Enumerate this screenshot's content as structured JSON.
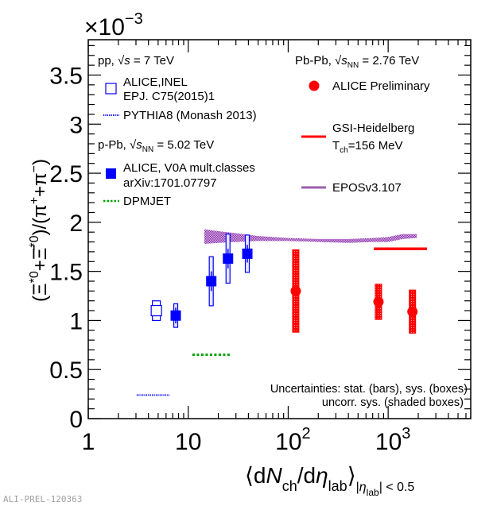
{
  "chart_data": {
    "type": "scatter",
    "title": "",
    "exponent_label": "×10",
    "exponent_power": "−3",
    "ylabel": "(Ξ*0 + anti-Ξ*0)/(π+ + π−)",
    "xlabel": "⟨dNch/dηlab⟩ |ηlab| < 0.5",
    "xscale": "log",
    "xlim": [
      1,
      6700
    ],
    "ylim": [
      0,
      3.86
    ],
    "x_ticks": [
      {
        "value": 1,
        "label": "1",
        "sup": ""
      },
      {
        "value": 10,
        "label": "10",
        "sup": ""
      },
      {
        "value": 100,
        "label": "10",
        "sup": "2"
      },
      {
        "value": 1000,
        "label": "10",
        "sup": "3"
      }
    ],
    "y_ticks": [
      {
        "value": 0,
        "label": "0"
      },
      {
        "value": 0.5,
        "label": "0.5"
      },
      {
        "value": 1,
        "label": "1"
      },
      {
        "value": 1.5,
        "label": "1.5"
      },
      {
        "value": 2,
        "label": "2"
      },
      {
        "value": 2.5,
        "label": "2.5"
      },
      {
        "value": 3,
        "label": "3"
      },
      {
        "value": 3.5,
        "label": "3.5"
      }
    ],
    "grid": false,
    "series": [
      {
        "name": "ALICE,INEL (pp, √s = 7 TeV)",
        "marker": "open-square",
        "color": "#0000ff",
        "points": [
          {
            "x": 4.8,
            "y": 1.1,
            "stat": 0.0,
            "sys": 0.1,
            "sys_halfwidth_dex": 0.045
          }
        ]
      },
      {
        "name": "ALICE, V0A mult.classes (p-Pb, √sNN = 5.02 TeV)",
        "marker": "filled-square",
        "color": "#0000ff",
        "points": [
          {
            "x": 7.5,
            "y": 1.05,
            "stat": 0.08,
            "sys": 0.12
          },
          {
            "x": 17.0,
            "y": 1.4,
            "stat": 0.1,
            "sys": 0.25
          },
          {
            "x": 25.0,
            "y": 1.63,
            "stat": 0.1,
            "sys": 0.25
          },
          {
            "x": 39.0,
            "y": 1.68,
            "stat": 0.09,
            "sys": 0.19
          }
        ]
      },
      {
        "name": "ALICE Preliminary (Pb-Pb, √sNN = 2.76 TeV)",
        "marker": "filled-circle",
        "color": "#ff0000",
        "points": [
          {
            "x": 119,
            "y": 1.3,
            "stat": 0.0,
            "sys": 0.42
          },
          {
            "x": 800,
            "y": 1.19,
            "stat": 0.0,
            "sys": 0.18
          },
          {
            "x": 1750,
            "y": 1.09,
            "stat": 0.0,
            "sys": 0.22
          }
        ]
      }
    ],
    "models": [
      {
        "name": "PYTHIA8 (Monash 2013)",
        "style": "dotted",
        "color": "#0000ff",
        "x": [
          3.05,
          6.5
        ],
        "y": 0.24
      },
      {
        "name": "DPMJET",
        "style": "dotted",
        "color": "#00a000",
        "x": [
          11,
          26
        ],
        "y": 0.65
      },
      {
        "name": "GSI-Heidelberg Tch=156 MeV",
        "style": "solid",
        "color": "#ff0000",
        "x": [
          720,
          2450
        ],
        "y": 1.73
      },
      {
        "name": "EPOSv3.107",
        "style": "band",
        "color": "#8a2da8",
        "x": [
          14.5,
          20,
          30,
          50,
          100,
          200,
          400,
          700,
          1000,
          1400,
          1940
        ],
        "y_low": [
          1.78,
          1.79,
          1.8,
          1.81,
          1.81,
          1.8,
          1.79,
          1.8,
          1.8,
          1.83,
          1.84
        ],
        "y_high": [
          1.93,
          1.91,
          1.89,
          1.86,
          1.84,
          1.83,
          1.83,
          1.84,
          1.85,
          1.88,
          1.88
        ]
      }
    ],
    "legend": {
      "pp_header": {
        "prefix": "pp, ",
        "root": "s",
        "rest": " = 7 TeV"
      },
      "pp_entries": [
        {
          "label_lines": [
            "ALICE,INEL",
            "EPJ. C75(2015)1"
          ],
          "symbol": "open-square"
        },
        {
          "label_lines": [
            "PYTHIA8 (Monash 2013)"
          ],
          "symbol": "blue-dotted"
        }
      ],
      "ppb_header": {
        "prefix": "p-Pb, ",
        "root": "s",
        "sub": "NN",
        "rest": " = 5.02 TeV"
      },
      "ppb_entries": [
        {
          "label_lines": [
            "ALICE, V0A mult.classes",
            "arXiv:1701.07797"
          ],
          "symbol": "filled-square"
        },
        {
          "label_lines": [
            "DPMJET"
          ],
          "symbol": "green-dotted"
        }
      ],
      "pbpb_header": {
        "prefix": "Pb-Pb, ",
        "root": "s",
        "sub": "NN",
        "rest": " = 2.76 TeV"
      },
      "pbpb_entries": [
        {
          "label_lines": [
            "ALICE Preliminary"
          ],
          "symbol": "red-circle"
        },
        {
          "label_lines": [
            "GSI-Heidelberg",
            "T",
            "ch",
            "=156 MeV"
          ],
          "symbol": "red-line"
        },
        {
          "label_lines": [
            "EPOSv3.107"
          ],
          "symbol": "purple-line"
        }
      ],
      "placement": "top"
    },
    "annotations": [
      "Uncertainties: stat. (bars), sys. (boxes)",
      "uncorr. sys. (shaded boxes)"
    ]
  },
  "watermark": "ALI-PREL-120363"
}
